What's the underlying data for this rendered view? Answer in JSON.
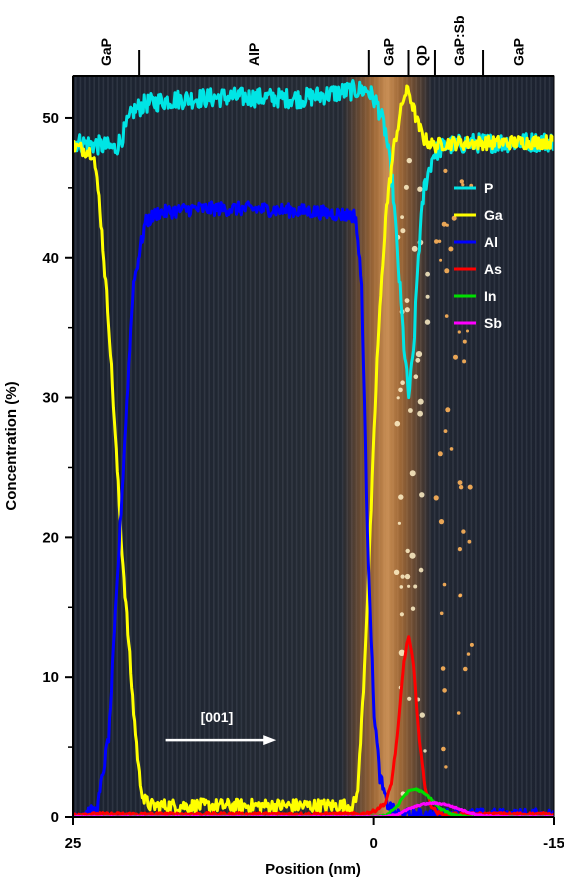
{
  "chart_data": {
    "type": "line",
    "xlabel": "Position (nm)",
    "ylabel": "Concentration (%)",
    "xlim": [
      25,
      -15
    ],
    "ylim": [
      0,
      53
    ],
    "x_ticks": [
      {
        "value": 25,
        "label": "25"
      },
      {
        "value": 0,
        "label": "0"
      },
      {
        "value": -15,
        "label": "-15"
      }
    ],
    "y_ticks": [
      {
        "value": 0,
        "label": "0"
      },
      {
        "value": 10,
        "label": "10"
      },
      {
        "value": 20,
        "label": "20"
      },
      {
        "value": 30,
        "label": "30"
      },
      {
        "value": 40,
        "label": "40"
      },
      {
        "value": 50,
        "label": "50"
      }
    ],
    "regions": [
      {
        "label": "GaP",
        "from": 25,
        "to": 19.5
      },
      {
        "label": "AlP",
        "from": 19.5,
        "to": 0.4
      },
      {
        "label": "GaP",
        "from": 0.4,
        "to": -2.9
      },
      {
        "label": "QD",
        "from": -2.9,
        "to": -5.1
      },
      {
        "label": "GaP:Sb",
        "from": -5.1,
        "to": -9.1
      },
      {
        "label": "GaP",
        "from": -9.1,
        "to": -15
      }
    ],
    "legend_position": "right",
    "annotation": {
      "text": "[001]",
      "arrow_from": 17.3,
      "arrow_to": 8.1,
      "y": 5.5
    },
    "background": "HAADF-STEM image (dark with orange atomic columns)",
    "series": [
      {
        "name": "P",
        "color": "#00e5e5",
        "noise": 0.7,
        "x": [
          25,
          22.5,
          21.5,
          21.0,
          20.0,
          19.0,
          17.0,
          12.0,
          6.0,
          1.5,
          0.5,
          -0.3,
          -1.0,
          -1.6,
          -2.0,
          -2.5,
          -2.9,
          -3.3,
          -3.7,
          -4.2,
          -5.0,
          -6.0,
          -8.0,
          -15
        ],
        "y": [
          48.3,
          48.0,
          47.8,
          48.5,
          50.5,
          51.0,
          51.3,
          51.5,
          51.4,
          52.0,
          52.0,
          51.0,
          49.0,
          45.0,
          40.0,
          34.0,
          30.0,
          33.0,
          40.0,
          45.0,
          47.5,
          48.0,
          48.2,
          48.3
        ]
      },
      {
        "name": "Ga",
        "color": "#ffff00",
        "noise": 0.5,
        "x": [
          25,
          23.3,
          22.8,
          22.0,
          21.0,
          20.0,
          19.5,
          19.1,
          18.5,
          17.5,
          16.0,
          8.0,
          1.7,
          1.4,
          1.2,
          0.8,
          0.3,
          -0.3,
          -1.0,
          -1.7,
          -2.5,
          -2.9,
          -3.2,
          -3.7,
          -4.2,
          -5.0,
          -6.0,
          -8.0,
          -15
        ],
        "y": [
          48.0,
          47.5,
          44.0,
          35.0,
          20.0,
          8.0,
          3.0,
          1.2,
          0.8,
          0.8,
          0.8,
          0.8,
          0.8,
          1.5,
          3.5,
          10.0,
          20.0,
          33.0,
          43.0,
          48.0,
          51.5,
          52.0,
          51.0,
          49.5,
          48.5,
          48.0,
          48.2,
          48.2,
          48.3
        ]
      },
      {
        "name": "Al",
        "color": "#0000ff",
        "noise": 0.5,
        "x": [
          25,
          23.0,
          22.0,
          21.0,
          20.0,
          19.0,
          18.0,
          15.0,
          10.0,
          5.0,
          1.5,
          1.0,
          0.5,
          0.0,
          -0.5,
          -1.0,
          -1.5,
          -2.0,
          -2.5,
          -15
        ],
        "y": [
          0.1,
          0.4,
          6.0,
          22.0,
          38.0,
          42.5,
          43.2,
          43.5,
          43.5,
          43.3,
          43.0,
          38.0,
          20.0,
          8.0,
          3.0,
          1.2,
          0.5,
          0.2,
          0.1,
          0.1
        ]
      },
      {
        "name": "As",
        "color": "#ff0000",
        "noise": 0.12,
        "x": [
          25,
          1.0,
          0.0,
          -1.0,
          -1.5,
          -2.0,
          -2.5,
          -2.9,
          -3.3,
          -3.8,
          -4.3,
          -4.8,
          -5.3,
          -6.0,
          -8.0,
          -15
        ],
        "y": [
          0.2,
          0.2,
          0.4,
          1.0,
          2.5,
          6.0,
          11.0,
          13.0,
          11.0,
          5.5,
          2.0,
          0.8,
          0.3,
          0.2,
          0.2,
          0.2
        ]
      },
      {
        "name": "In",
        "color": "#00dd00",
        "noise": 0.06,
        "x": [
          25,
          0.0,
          -1.0,
          -2.0,
          -2.5,
          -3.0,
          -3.5,
          -4.0,
          -4.5,
          -5.0,
          -5.5,
          -6.5,
          -8.0,
          -15
        ],
        "y": [
          0.0,
          0.0,
          0.1,
          0.8,
          1.5,
          1.9,
          2.0,
          1.8,
          1.5,
          1.1,
          0.6,
          0.2,
          0.0,
          0.0
        ]
      },
      {
        "name": "Sb",
        "color": "#ff00ff",
        "noise": 0.05,
        "x": [
          25,
          -1.0,
          -2.0,
          -3.0,
          -4.0,
          -5.0,
          -6.0,
          -7.0,
          -8.0,
          -9.0,
          -11.0,
          -15
        ],
        "y": [
          0.0,
          0.0,
          0.2,
          0.6,
          0.9,
          1.0,
          0.9,
          0.6,
          0.3,
          0.1,
          0.0,
          0.0
        ]
      }
    ]
  }
}
